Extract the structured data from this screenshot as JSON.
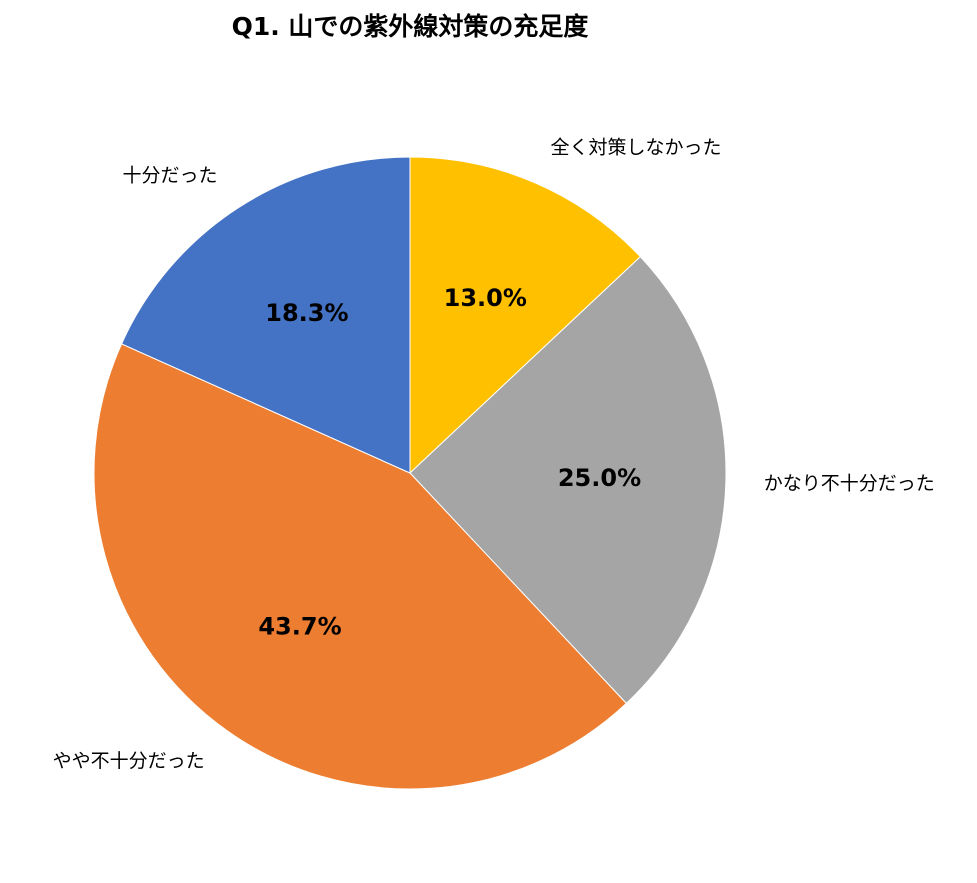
{
  "chart_data": {
    "type": "pie",
    "title": "Q1. 山での紫外線対策の充足度",
    "categories": [
      "全く対策しなかった",
      "かなり不十分だった",
      "やや不十分だった",
      "十分だった"
    ],
    "values": [
      13.0,
      25.0,
      43.7,
      18.3
    ],
    "value_labels": [
      "13.0%",
      "25.0%",
      "43.7%",
      "18.3%"
    ],
    "colors": [
      "#FFC000",
      "#A5A5A5",
      "#ED7D31",
      "#4472C4"
    ]
  }
}
